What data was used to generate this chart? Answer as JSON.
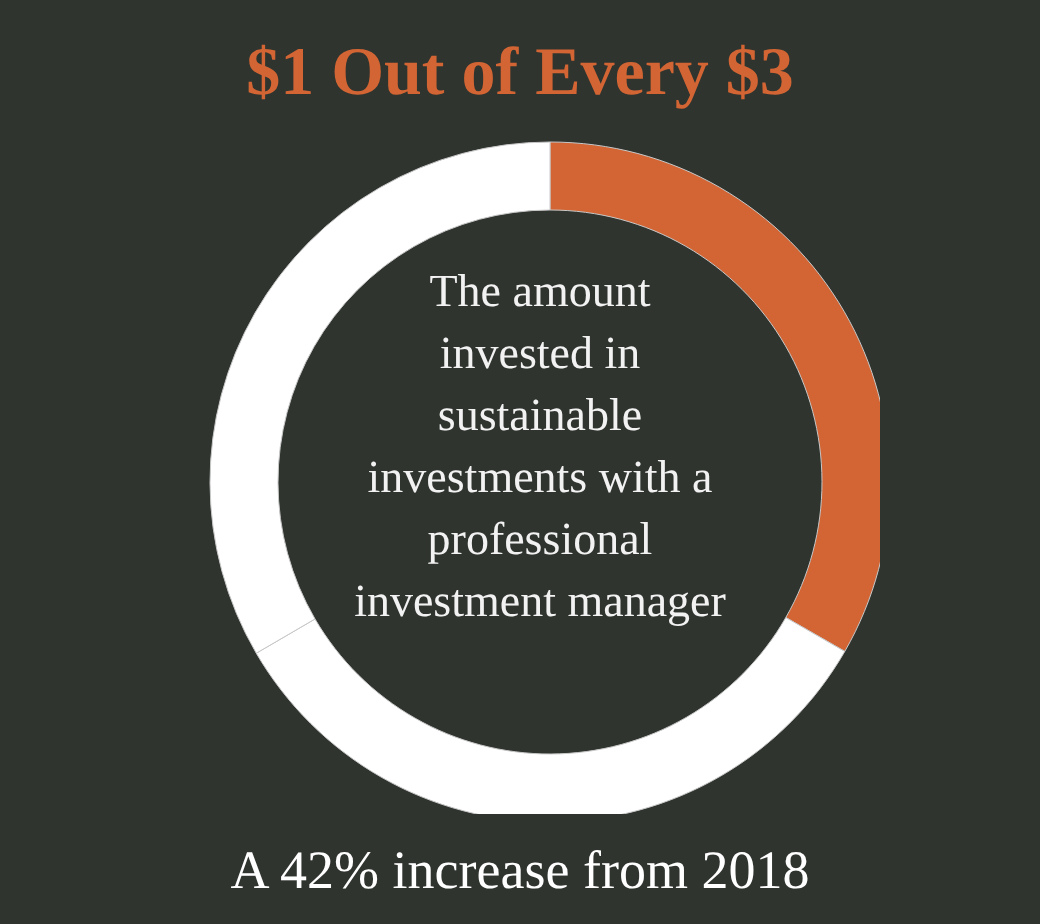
{
  "chart_data": {
    "type": "donut",
    "title": "$1 Out of Every $3",
    "categories": [
      null,
      null,
      null
    ],
    "values": [
      33.3,
      33.3,
      33.4
    ],
    "colors": [
      "#d26533",
      "#ffffff",
      "#ffffff"
    ],
    "annotations": [
      "The amount invested in sustainable investments with a professional investment manager",
      "A 42% increase from 2018"
    ]
  }
}
